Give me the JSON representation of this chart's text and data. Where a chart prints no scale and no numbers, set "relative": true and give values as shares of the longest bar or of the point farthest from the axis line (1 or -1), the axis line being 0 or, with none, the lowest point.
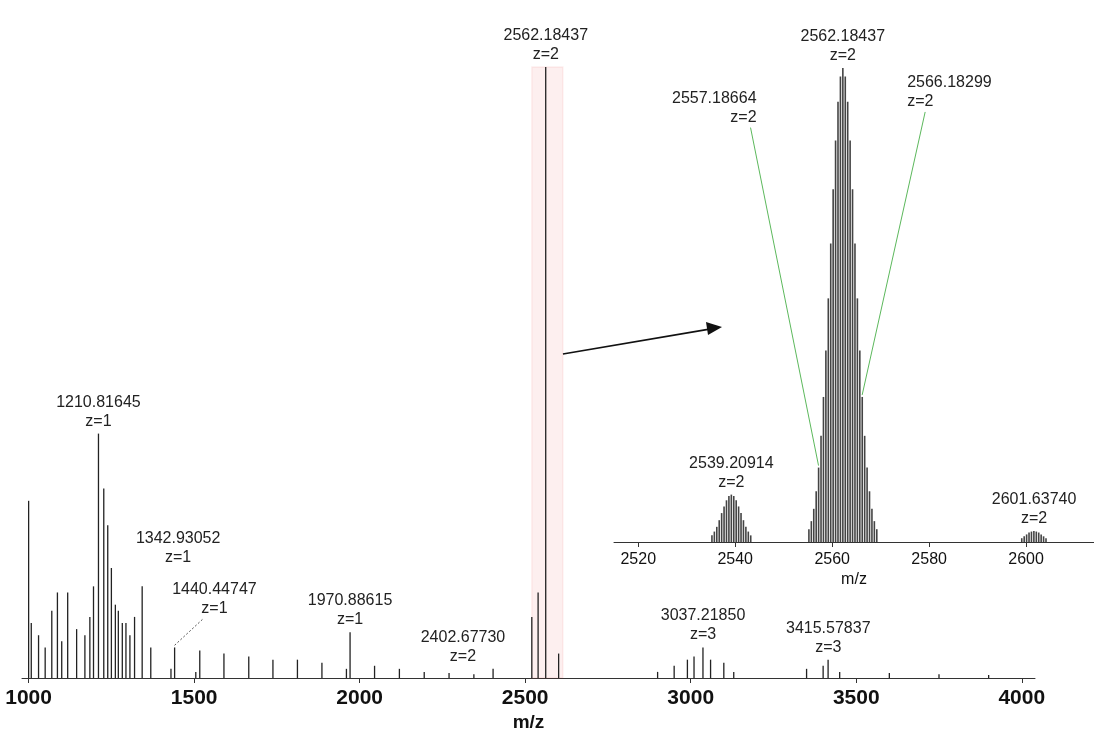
{
  "chart_data": [
    {
      "type": "bar",
      "relative": true,
      "xlabel": "m/z",
      "xlim": [
        980,
        4040
      ],
      "xticks": [
        1000,
        1500,
        2000,
        2500,
        3000,
        3500,
        4000
      ],
      "grid": false,
      "bands": [
        {
          "axis": "x",
          "from": 2520,
          "to": 2614,
          "color": "#e03030"
        }
      ],
      "x": [
        1000,
        1008,
        1030,
        1050,
        1070,
        1087,
        1100,
        1118,
        1145,
        1170,
        1185,
        1196,
        1211,
        1227,
        1239,
        1250,
        1262,
        1271,
        1283,
        1294,
        1306,
        1320,
        1343,
        1369,
        1430,
        1441,
        1505,
        1517,
        1590,
        1665,
        1738,
        1812,
        1886,
        1960,
        1971,
        2045,
        2120,
        2195,
        2270,
        2345,
        2403,
        2520,
        2539,
        2562,
        2601,
        2900,
        2950,
        2990,
        3010,
        3037,
        3060,
        3100,
        3130,
        3350,
        3400,
        3415,
        3450,
        3600,
        3750,
        3900
      ],
      "series": [
        {
          "color": "#222222",
          "values": [
            0.29,
            0.09,
            0.07,
            0.05,
            0.11,
            0.14,
            0.06,
            0.14,
            0.08,
            0.07,
            0.1,
            0.15,
            0.4,
            0.31,
            0.25,
            0.18,
            0.12,
            0.11,
            0.09,
            0.09,
            0.07,
            0.1,
            0.15,
            0.05,
            0.015,
            0.05,
            0.01,
            0.045,
            0.04,
            0.035,
            0.03,
            0.03,
            0.025,
            0.015,
            0.075,
            0.02,
            0.015,
            0.01,
            0.008,
            0.006,
            0.015,
            0.1,
            0.14,
            1.0,
            0.04,
            0.01,
            0.02,
            0.03,
            0.035,
            0.05,
            0.03,
            0.025,
            0.01,
            0.015,
            0.02,
            0.03,
            0.01,
            0.008,
            0.006,
            0.005
          ]
        }
      ],
      "annotations": [
        {
          "text": "1210.81645\nz=1",
          "x": 1210.81645,
          "y": 0.4
        },
        {
          "text": "1342.93052\nz=1",
          "x": 1342.93052,
          "y": 0.15
        },
        {
          "text": "1440.44747\nz=1",
          "x": 1440.44747,
          "y": 0.05
        },
        {
          "text": "1970.88615\nz=1",
          "x": 1970.88615,
          "y": 0.075
        },
        {
          "text": "2402.67730\nz=2",
          "x": 2402.6773,
          "y": 0.015
        },
        {
          "text": "2562.18437\nz=2",
          "x": 2562.18437,
          "y": 1.0
        },
        {
          "text": "3037.21850\nz=3",
          "x": 3037.2185,
          "y": 0.05
        },
        {
          "text": "3415.57837\nz=3",
          "x": 3415.57837,
          "y": 0.03
        }
      ]
    },
    {
      "type": "bar",
      "relative": true,
      "xlabel": "m/z",
      "xlim": [
        2515,
        2614
      ],
      "xticks": [
        2520,
        2540,
        2560,
        2580,
        2600
      ],
      "grid": false,
      "x": [
        2535.2,
        2535.7,
        2536.2,
        2536.7,
        2537.2,
        2537.7,
        2538.2,
        2538.7,
        2539.2,
        2539.7,
        2540.2,
        2540.7,
        2541.2,
        2541.7,
        2542.2,
        2542.7,
        2543.2,
        2555.2,
        2555.7,
        2556.2,
        2556.7,
        2557.2,
        2557.7,
        2558.2,
        2558.7,
        2559.2,
        2559.7,
        2560.2,
        2560.7,
        2561.2,
        2561.7,
        2562.2,
        2562.7,
        2563.2,
        2563.7,
        2564.2,
        2564.7,
        2565.2,
        2565.7,
        2566.2,
        2566.7,
        2567.2,
        2567.7,
        2568.2,
        2568.7,
        2569.2,
        2599.1,
        2599.6,
        2600.1,
        2600.6,
        2601.1,
        2601.6,
        2602.1,
        2602.6,
        2603.1,
        2603.6,
        2604.1
      ],
      "series": [
        {
          "color": "#444444",
          "values": [
            0.014,
            0.022,
            0.032,
            0.046,
            0.061,
            0.075,
            0.088,
            0.097,
            0.1,
            0.097,
            0.088,
            0.075,
            0.061,
            0.046,
            0.032,
            0.022,
            0.014,
            0.027,
            0.044,
            0.07,
            0.107,
            0.157,
            0.224,
            0.306,
            0.404,
            0.514,
            0.63,
            0.744,
            0.847,
            0.929,
            0.982,
            1.0,
            0.982,
            0.929,
            0.847,
            0.744,
            0.63,
            0.514,
            0.404,
            0.306,
            0.224,
            0.157,
            0.107,
            0.07,
            0.044,
            0.027,
            0.008,
            0.012,
            0.016,
            0.02,
            0.022,
            0.023,
            0.022,
            0.02,
            0.016,
            0.012,
            0.008
          ]
        }
      ],
      "annotations": [
        {
          "text": "2539.20914\nz=2",
          "x": 2539.20914,
          "y": 0.1
        },
        {
          "text": "2557.18664\nz=2",
          "x": 2557.18664,
          "y": 0.157
        },
        {
          "text": "2562.18437\nz=2",
          "x": 2562.18437,
          "y": 1.0
        },
        {
          "text": "2566.18299\nz=2",
          "x": 2566.18299,
          "y": 0.306
        },
        {
          "text": "2601.63740\nz=2",
          "x": 2601.6374,
          "y": 0.023
        }
      ]
    }
  ]
}
